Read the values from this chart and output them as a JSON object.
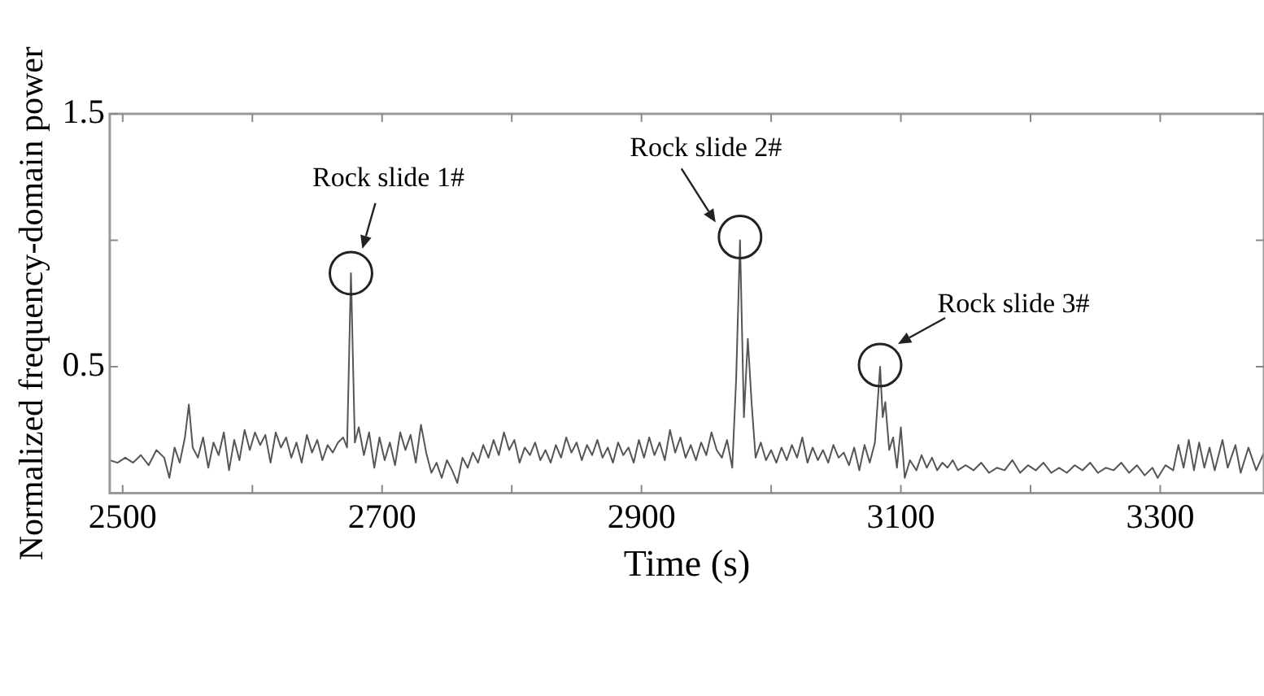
{
  "chart_data": {
    "type": "line",
    "xlabel": "Time (s)",
    "ylabel": "Normalized frequency-domain power",
    "xlim": [
      2490,
      3380
    ],
    "ylim": [
      0,
      1.5
    ],
    "xticks": [
      2500,
      {
        "value": 2600,
        "label": null
      },
      2700,
      {
        "value": 2800,
        "label": null
      },
      2900,
      {
        "value": 3000,
        "label": null
      },
      3100,
      {
        "value": 3200,
        "label": null
      },
      3300
    ],
    "yticks": [
      0.5,
      {
        "value": 1,
        "label": null
      },
      1.5
    ],
    "grid": false,
    "legend": false,
    "marker": "none",
    "line_style": "solid",
    "annotations": [
      {
        "text": "Rock slide 1#",
        "x": 2676,
        "y": 0.87
      },
      {
        "text": "Rock slide 2#",
        "x": 2976,
        "y": 1.0
      },
      {
        "text": "Rock slide 3#",
        "x": 3084,
        "y": 0.5
      }
    ],
    "series": [
      {
        "color": "#555555",
        "x": [
          2490,
          2496,
          2502,
          2508,
          2514,
          2520,
          2526,
          2532,
          2536,
          2540,
          2544,
          2548,
          2551,
          2554,
          2558,
          2562,
          2566,
          2570,
          2574,
          2578,
          2582,
          2586,
          2590,
          2594,
          2598,
          2602,
          2606,
          2610,
          2614,
          2618,
          2622,
          2626,
          2630,
          2634,
          2638,
          2642,
          2646,
          2650,
          2654,
          2658,
          2662,
          2666,
          2670,
          2673,
          2676,
          2679,
          2682,
          2686,
          2690,
          2694,
          2698,
          2702,
          2706,
          2710,
          2714,
          2718,
          2722,
          2726,
          2730,
          2734,
          2738,
          2742,
          2746,
          2750,
          2754,
          2758,
          2762,
          2766,
          2770,
          2774,
          2778,
          2782,
          2786,
          2790,
          2794,
          2798,
          2802,
          2806,
          2810,
          2814,
          2818,
          2822,
          2826,
          2830,
          2834,
          2838,
          2842,
          2846,
          2850,
          2854,
          2858,
          2862,
          2866,
          2870,
          2874,
          2878,
          2882,
          2886,
          2890,
          2894,
          2898,
          2902,
          2906,
          2910,
          2914,
          2918,
          2922,
          2926,
          2930,
          2934,
          2938,
          2942,
          2946,
          2950,
          2954,
          2958,
          2962,
          2966,
          2970,
          2973,
          2976,
          2979,
          2982,
          2985,
          2988,
          2992,
          2996,
          3000,
          3004,
          3008,
          3012,
          3016,
          3020,
          3024,
          3028,
          3032,
          3036,
          3040,
          3044,
          3048,
          3052,
          3056,
          3060,
          3064,
          3068,
          3072,
          3076,
          3080,
          3084,
          3086,
          3088,
          3091,
          3094,
          3097,
          3100,
          3103,
          3107,
          3112,
          3116,
          3120,
          3124,
          3128,
          3132,
          3136,
          3140,
          3144,
          3150,
          3156,
          3162,
          3168,
          3174,
          3180,
          3186,
          3192,
          3198,
          3204,
          3210,
          3216,
          3222,
          3228,
          3234,
          3240,
          3246,
          3252,
          3258,
          3264,
          3270,
          3276,
          3282,
          3288,
          3294,
          3298,
          3304,
          3310,
          3314,
          3318,
          3322,
          3326,
          3330,
          3334,
          3338,
          3342,
          3348,
          3352,
          3358,
          3362,
          3368,
          3374,
          3380
        ],
        "values": [
          0.13,
          0.12,
          0.14,
          0.12,
          0.15,
          0.11,
          0.17,
          0.14,
          0.06,
          0.18,
          0.12,
          0.22,
          0.35,
          0.18,
          0.14,
          0.22,
          0.1,
          0.2,
          0.15,
          0.24,
          0.09,
          0.21,
          0.13,
          0.25,
          0.17,
          0.24,
          0.19,
          0.23,
          0.12,
          0.24,
          0.18,
          0.22,
          0.14,
          0.2,
          0.12,
          0.23,
          0.16,
          0.21,
          0.13,
          0.19,
          0.16,
          0.2,
          0.22,
          0.18,
          0.87,
          0.2,
          0.26,
          0.15,
          0.24,
          0.1,
          0.22,
          0.13,
          0.2,
          0.11,
          0.24,
          0.17,
          0.23,
          0.12,
          0.27,
          0.16,
          0.08,
          0.12,
          0.06,
          0.13,
          0.09,
          0.04,
          0.14,
          0.1,
          0.16,
          0.12,
          0.19,
          0.14,
          0.21,
          0.15,
          0.24,
          0.17,
          0.21,
          0.12,
          0.18,
          0.15,
          0.2,
          0.13,
          0.17,
          0.12,
          0.19,
          0.14,
          0.22,
          0.16,
          0.2,
          0.13,
          0.19,
          0.15,
          0.21,
          0.14,
          0.18,
          0.12,
          0.2,
          0.15,
          0.18,
          0.12,
          0.21,
          0.14,
          0.22,
          0.15,
          0.2,
          0.13,
          0.25,
          0.16,
          0.22,
          0.14,
          0.19,
          0.13,
          0.2,
          0.15,
          0.24,
          0.17,
          0.14,
          0.21,
          0.1,
          0.45,
          1.0,
          0.3,
          0.61,
          0.35,
          0.14,
          0.2,
          0.13,
          0.17,
          0.12,
          0.18,
          0.13,
          0.19,
          0.14,
          0.22,
          0.12,
          0.18,
          0.13,
          0.17,
          0.12,
          0.19,
          0.14,
          0.16,
          0.11,
          0.18,
          0.09,
          0.19,
          0.12,
          0.2,
          0.5,
          0.3,
          0.36,
          0.17,
          0.22,
          0.1,
          0.26,
          0.06,
          0.13,
          0.09,
          0.15,
          0.1,
          0.14,
          0.09,
          0.12,
          0.1,
          0.13,
          0.09,
          0.11,
          0.09,
          0.12,
          0.08,
          0.1,
          0.09,
          0.13,
          0.08,
          0.11,
          0.09,
          0.12,
          0.08,
          0.1,
          0.08,
          0.11,
          0.09,
          0.12,
          0.08,
          0.1,
          0.09,
          0.12,
          0.08,
          0.11,
          0.07,
          0.1,
          0.06,
          0.11,
          0.09,
          0.19,
          0.1,
          0.21,
          0.09,
          0.2,
          0.1,
          0.18,
          0.09,
          0.21,
          0.1,
          0.19,
          0.08,
          0.18,
          0.09,
          0.16
        ]
      }
    ]
  }
}
